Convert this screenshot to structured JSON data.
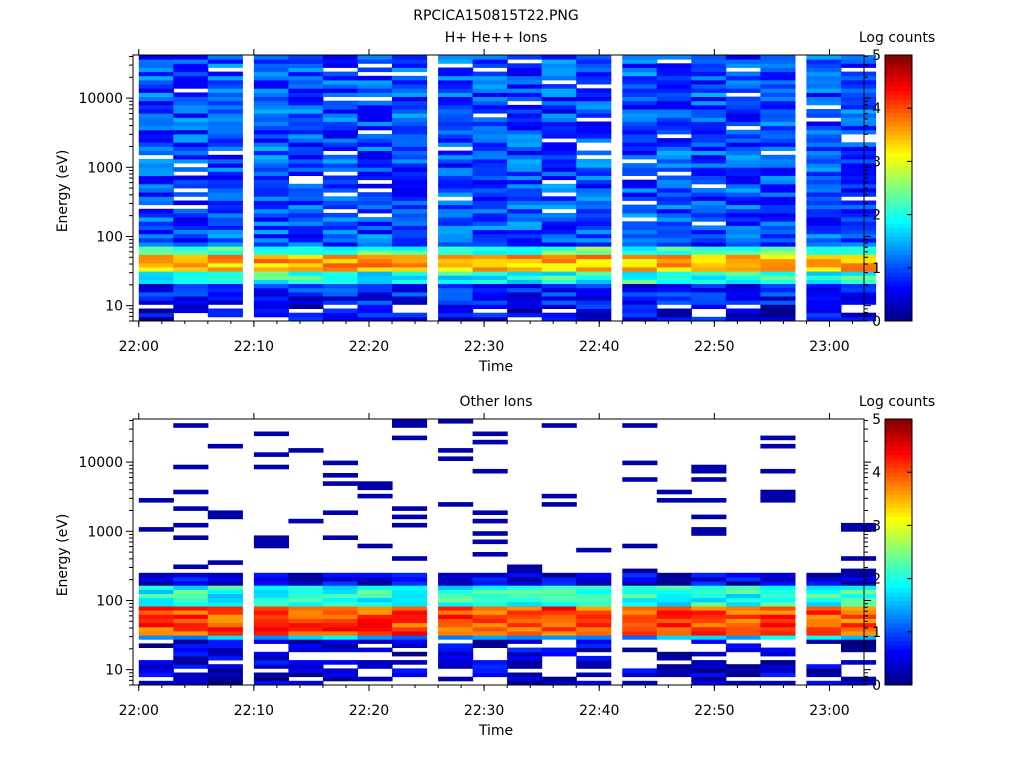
{
  "figure_title": "RPCICA150815T22.PNG",
  "chart_data": [
    {
      "type": "heatmap",
      "title": "H+ He++ Ions",
      "xlabel": "Time",
      "ylabel": "Energy (eV)",
      "y_scale": "log",
      "ylim": [
        6,
        42000
      ],
      "x_ticks": [
        "22:00",
        "22:10",
        "22:20",
        "22:30",
        "22:40",
        "22:50",
        "23:00"
      ],
      "y_ticks": [
        "10",
        "100",
        "1000",
        "10000"
      ],
      "colorbar": {
        "label": "Log counts",
        "range": [
          0,
          5
        ],
        "ticks": [
          "0",
          "1",
          "2",
          "3",
          "4",
          "5"
        ]
      },
      "time_columns": [
        "22:00",
        "22:03",
        "22:06",
        "22:10",
        "22:13",
        "22:16",
        "22:19",
        "22:22",
        "22:26",
        "22:29",
        "22:32",
        "22:35",
        "22:38",
        "22:42",
        "22:45",
        "22:48",
        "22:51",
        "22:54",
        "22:58",
        "23:01"
      ],
      "energy_band_profile": [
        {
          "energy_range_eV": [
            6,
            10
          ],
          "log_counts": 0.5
        },
        {
          "energy_range_eV": [
            10,
            22
          ],
          "log_counts": 0.7
        },
        {
          "energy_range_eV": [
            22,
            30
          ],
          "log_counts": 2.0
        },
        {
          "energy_range_eV": [
            30,
            55
          ],
          "log_counts": 3.5
        },
        {
          "energy_range_eV": [
            55,
            75
          ],
          "log_counts": 2.2
        },
        {
          "energy_range_eV": [
            75,
            42000
          ],
          "log_counts": 1.0
        }
      ]
    },
    {
      "type": "heatmap",
      "title": "Other Ions",
      "xlabel": "Time",
      "ylabel": "Energy (eV)",
      "y_scale": "log",
      "ylim": [
        6,
        42000
      ],
      "x_ticks": [
        "22:00",
        "22:10",
        "22:20",
        "22:30",
        "22:40",
        "22:50",
        "23:00"
      ],
      "y_ticks": [
        "10",
        "100",
        "1000",
        "10000"
      ],
      "colorbar": {
        "label": "Log counts",
        "range": [
          0,
          5
        ],
        "ticks": [
          "0",
          "1",
          "2",
          "3",
          "4",
          "5"
        ]
      },
      "time_columns": [
        "22:00",
        "22:03",
        "22:06",
        "22:10",
        "22:13",
        "22:16",
        "22:19",
        "22:22",
        "22:26",
        "22:29",
        "22:32",
        "22:35",
        "22:38",
        "22:42",
        "22:45",
        "22:48",
        "22:51",
        "22:54",
        "22:58",
        "23:01"
      ],
      "energy_band_profile": [
        {
          "energy_range_eV": [
            6,
            26
          ],
          "log_counts": 0.4
        },
        {
          "energy_range_eV": [
            26,
            32
          ],
          "log_counts": 1.5
        },
        {
          "energy_range_eV": [
            32,
            80
          ],
          "log_counts": 4.0
        },
        {
          "energy_range_eV": [
            80,
            160
          ],
          "log_counts": 2.0
        },
        {
          "energy_range_eV": [
            160,
            250
          ],
          "log_counts": 0.5
        },
        {
          "energy_range_eV": [
            250,
            42000
          ],
          "log_counts": 0.2
        }
      ]
    }
  ],
  "colors": {
    "background": "#ffffff",
    "missing_data": "#ffffff",
    "axis": "#000000"
  }
}
